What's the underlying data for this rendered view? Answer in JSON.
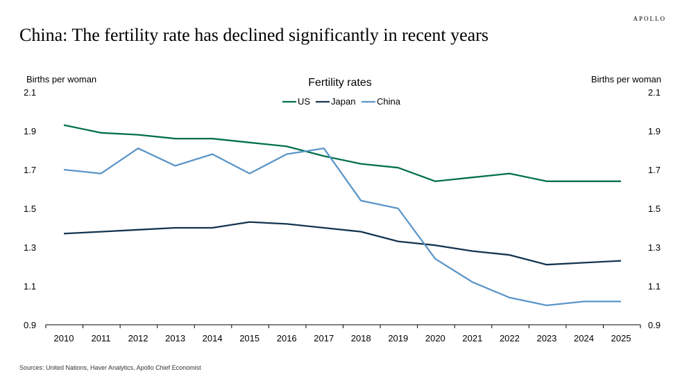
{
  "brand": "APOLLO",
  "headline": "China: The fertility rate has declined significantly in recent years",
  "source": "Sources: United Nations, Haver Analytics, Apollo Chief Economist",
  "chart_data": {
    "type": "line",
    "title": "Fertility rates",
    "ylabel_left": "Births per woman",
    "ylabel_right": "Births per woman",
    "xlabel": "",
    "ylim": [
      0.9,
      2.1
    ],
    "yticks": [
      "0.9",
      "1.1",
      "1.3",
      "1.5",
      "1.7",
      "1.9",
      "2.1"
    ],
    "categories": [
      "2010",
      "2011",
      "2012",
      "2013",
      "2014",
      "2015",
      "2016",
      "2017",
      "2018",
      "2019",
      "2020",
      "2021",
      "2022",
      "2023",
      "2024",
      "2025"
    ],
    "legend_position": "top-center",
    "series": [
      {
        "name": "US",
        "color": "#00704a",
        "values": [
          1.93,
          1.89,
          1.88,
          1.86,
          1.86,
          1.84,
          1.82,
          1.77,
          1.73,
          1.71,
          1.64,
          1.66,
          1.68,
          1.64,
          1.64,
          1.64
        ]
      },
      {
        "name": "Japan",
        "color": "#14344f",
        "values": [
          1.37,
          1.38,
          1.39,
          1.4,
          1.4,
          1.43,
          1.42,
          1.4,
          1.38,
          1.33,
          1.31,
          1.28,
          1.26,
          1.21,
          1.22,
          1.23
        ]
      },
      {
        "name": "China",
        "color": "#5b95c8",
        "values": [
          1.7,
          1.68,
          1.81,
          1.72,
          1.78,
          1.68,
          1.78,
          1.81,
          1.54,
          1.5,
          1.24,
          1.12,
          1.04,
          1.0,
          1.02,
          1.02
        ]
      }
    ]
  }
}
